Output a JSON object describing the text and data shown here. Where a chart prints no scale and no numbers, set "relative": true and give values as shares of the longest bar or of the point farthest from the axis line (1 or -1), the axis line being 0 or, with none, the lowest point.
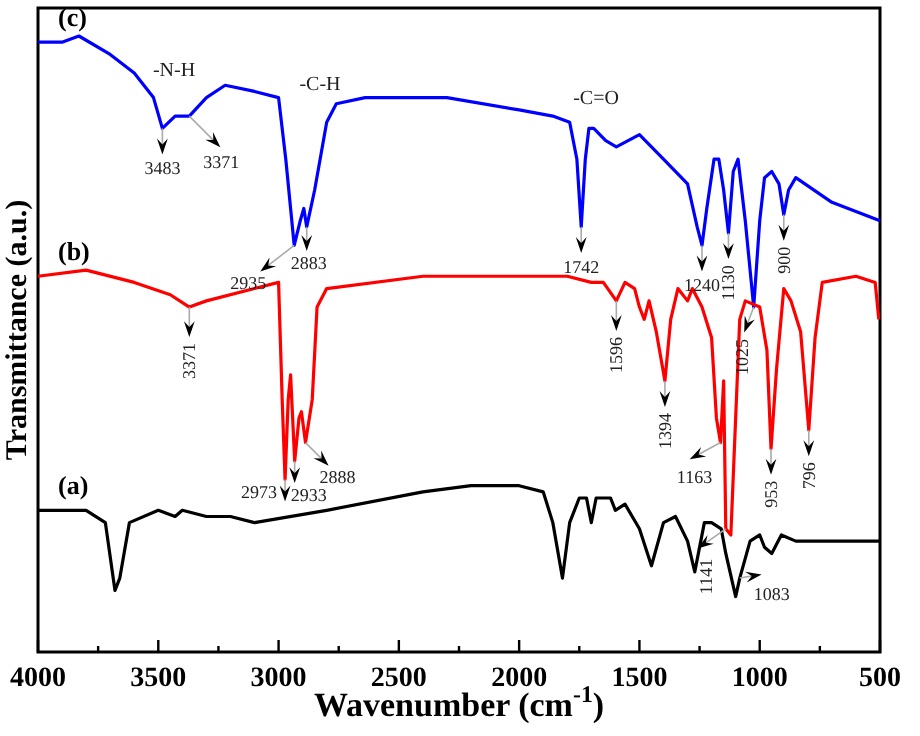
{
  "chart_data": {
    "type": "line",
    "relative": true,
    "xlabel": "Wavenumber (cm$^{-1}$)",
    "ylabel": "Transmittance (a.u.)",
    "xlim": [
      4000,
      500
    ],
    "xticks": [
      4000,
      {
        "value": 3750,
        "label": null
      },
      3500,
      {
        "value": 3250,
        "label": null
      },
      3000,
      {
        "value": 2750,
        "label": null
      },
      2500,
      {
        "value": 2250,
        "label": null
      },
      2000,
      {
        "value": 1750,
        "label": null
      },
      1500,
      {
        "value": 1250,
        "label": null
      },
      1000,
      {
        "value": 750,
        "label": null
      },
      500
    ],
    "marker": "none",
    "line_style": "solid",
    "series": [
      {
        "name": "(c)",
        "color": "#0000ff",
        "x": [
          4000,
          3900,
          3830,
          3700,
          3600,
          3520,
          3483,
          3430,
          3371,
          3300,
          3222,
          3100,
          3000,
          2970,
          2935,
          2910,
          2895,
          2883,
          2850,
          2800,
          2760,
          2640,
          2300,
          2000,
          1860,
          1790,
          1760,
          1742,
          1725,
          1710,
          1690,
          1640,
          1596,
          1500,
          1400,
          1300,
          1260,
          1240,
          1220,
          1190,
          1170,
          1150,
          1130,
          1110,
          1090,
          1060,
          1025,
          1000,
          980,
          950,
          920,
          900,
          880,
          850,
          700,
          500
        ],
        "values": [
          0.99,
          0.99,
          1.0,
          0.97,
          0.94,
          0.9,
          0.85,
          0.87,
          0.87,
          0.9,
          0.92,
          0.91,
          0.9,
          0.8,
          0.66,
          0.7,
          0.72,
          0.69,
          0.75,
          0.86,
          0.89,
          0.9,
          0.9,
          0.88,
          0.87,
          0.86,
          0.8,
          0.69,
          0.8,
          0.85,
          0.85,
          0.83,
          0.82,
          0.84,
          0.8,
          0.76,
          0.69,
          0.66,
          0.72,
          0.8,
          0.8,
          0.75,
          0.68,
          0.78,
          0.8,
          0.7,
          0.56,
          0.7,
          0.77,
          0.78,
          0.76,
          0.71,
          0.75,
          0.77,
          0.73,
          0.7
        ]
      },
      {
        "name": "(b)",
        "color": "#ff0000",
        "x": [
          4000,
          3800,
          3600,
          3450,
          3371,
          3300,
          3100,
          3000,
          2985,
          2973,
          2960,
          2950,
          2933,
          2915,
          2905,
          2888,
          2860,
          2840,
          2800,
          2400,
          2000,
          1800,
          1700,
          1650,
          1596,
          1560,
          1520,
          1500,
          1480,
          1460,
          1430,
          1394,
          1370,
          1340,
          1300,
          1280,
          1240,
          1200,
          1180,
          1163,
          1150,
          1141,
          1120,
          1100,
          1083,
          1060,
          1000,
          970,
          953,
          930,
          900,
          870,
          830,
          796,
          770,
          740,
          600,
          520,
          505
        ],
        "values": [
          0.61,
          0.62,
          0.6,
          0.58,
          0.56,
          0.57,
          0.59,
          0.6,
          0.41,
          0.28,
          0.41,
          0.45,
          0.31,
          0.38,
          0.39,
          0.34,
          0.41,
          0.56,
          0.59,
          0.61,
          0.61,
          0.61,
          0.6,
          0.6,
          0.57,
          0.6,
          0.59,
          0.56,
          0.54,
          0.57,
          0.52,
          0.44,
          0.54,
          0.59,
          0.57,
          0.59,
          0.56,
          0.51,
          0.38,
          0.34,
          0.44,
          0.2,
          0.19,
          0.38,
          0.54,
          0.57,
          0.56,
          0.49,
          0.33,
          0.46,
          0.59,
          0.57,
          0.52,
          0.36,
          0.51,
          0.6,
          0.61,
          0.6,
          0.54
        ]
      },
      {
        "name": "(a)",
        "color": "#000000",
        "x": [
          4000,
          3800,
          3720,
          3680,
          3660,
          3620,
          3500,
          3430,
          3400,
          3300,
          3200,
          3100,
          2800,
          2400,
          2200,
          2000,
          1900,
          1860,
          1820,
          1790,
          1750,
          1720,
          1700,
          1680,
          1620,
          1600,
          1560,
          1500,
          1450,
          1400,
          1350,
          1300,
          1270,
          1230,
          1200,
          1160,
          1141,
          1100,
          1083,
          1040,
          1000,
          980,
          950,
          910,
          850,
          700,
          500
        ],
        "values": [
          0.23,
          0.23,
          0.21,
          0.1,
          0.12,
          0.21,
          0.23,
          0.22,
          0.23,
          0.22,
          0.22,
          0.21,
          0.23,
          0.26,
          0.27,
          0.27,
          0.26,
          0.21,
          0.12,
          0.21,
          0.25,
          0.25,
          0.21,
          0.25,
          0.25,
          0.23,
          0.24,
          0.2,
          0.14,
          0.21,
          0.22,
          0.18,
          0.13,
          0.21,
          0.21,
          0.2,
          0.16,
          0.09,
          0.12,
          0.18,
          0.19,
          0.17,
          0.16,
          0.19,
          0.18,
          0.18,
          0.18
        ]
      }
    ],
    "annotations": [
      "-N-H",
      "-C-H",
      "-C=O",
      {
        "text": "3483",
        "x": 3483,
        "y": 0.85
      },
      {
        "text": "3371",
        "x": 3371,
        "y": 0.87
      },
      {
        "text": "2935",
        "x": 2935,
        "y": 0.66
      },
      {
        "text": "2883",
        "x": 2883,
        "y": 0.69
      },
      {
        "text": "1742",
        "x": 1742,
        "y": 0.69
      },
      {
        "text": "1240",
        "x": 1240,
        "y": 0.66
      },
      {
        "text": "1130",
        "x": 1130,
        "y": 0.68
      },
      {
        "text": "1025",
        "x": 1025,
        "y": 0.56
      },
      {
        "text": "900",
        "x": 900,
        "y": 0.71
      },
      {
        "text": "3371",
        "x": 3371,
        "y": 0.56
      },
      {
        "text": "1596",
        "x": 1596,
        "y": 0.57
      },
      {
        "text": "2973",
        "x": 2973,
        "y": 0.28
      },
      {
        "text": "2933",
        "x": 2933,
        "y": 0.31
      },
      {
        "text": "2888",
        "x": 2888,
        "y": 0.34
      },
      {
        "text": "1394",
        "x": 1394,
        "y": 0.44
      },
      {
        "text": "1163",
        "x": 1163,
        "y": 0.34
      },
      {
        "text": "953",
        "x": 953,
        "y": 0.33
      },
      {
        "text": "796",
        "x": 796,
        "y": 0.36
      },
      {
        "text": "1141",
        "x": 1141,
        "y": 0.2
      },
      {
        "text": "1083",
        "x": 1083,
        "y": 0.12
      }
    ]
  }
}
